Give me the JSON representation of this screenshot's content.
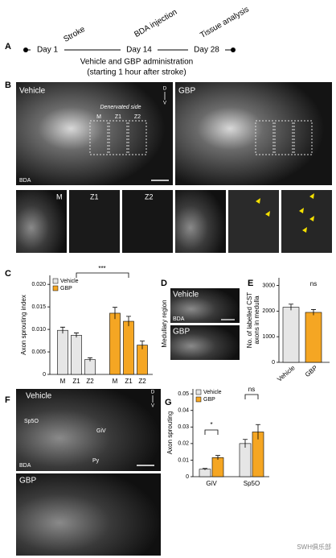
{
  "figure": {
    "panel_a": {
      "label": "A",
      "events": [
        "Stroke",
        "BDA injection",
        "Tissue analysis"
      ],
      "days": [
        "Day 1",
        "Day 14",
        "Day 28"
      ],
      "treatment": "Vehicle and GBP administration",
      "treatment_note": "(starting 1 hour after stroke)"
    },
    "panel_b": {
      "label": "B",
      "vehicle": "Vehicle",
      "gbp": "GBP",
      "dorsal": "D",
      "ventral": "V",
      "side_note": "Denervated side",
      "zones": [
        "M",
        "Z1",
        "Z2"
      ],
      "stain": "BDA",
      "inset_zones": [
        "M",
        "Z1",
        "Z2"
      ]
    },
    "panel_d": {
      "label": "D",
      "vehicle": "Vehicle",
      "gbp": "GBP",
      "stain": "BDA",
      "region": "Medullary region"
    },
    "panel_f": {
      "label": "F",
      "vehicle": "Vehicle",
      "gbp": "GBP",
      "stain": "BDA",
      "dorsal": "D",
      "ventral": "V",
      "regions": [
        "Sp5O",
        "GiV",
        "Py"
      ]
    },
    "watermark": "SWH俱乐部"
  },
  "chart_data": [
    {
      "panel": "C",
      "type": "bar",
      "y_label": "Axon sprouting index",
      "categories": [
        "M",
        "Z1",
        "Z2"
      ],
      "series": [
        {
          "name": "Vehicle",
          "color": "#e6e6e6",
          "values": [
            0.0098,
            0.0087,
            0.0033
          ],
          "errors": [
            0.0007,
            0.0005,
            0.0004
          ]
        },
        {
          "name": "GBP",
          "color": "#f5a623",
          "values": [
            0.0136,
            0.0118,
            0.0065
          ],
          "errors": [
            0.0013,
            0.0011,
            0.0009
          ]
        }
      ],
      "ylim": [
        0,
        0.022
      ],
      "yticks": [
        0,
        0.005,
        {
          "value": 0.01,
          "label": "0.010"
        },
        0.015,
        {
          "value": 0.02,
          "label": "0.020"
        }
      ],
      "annotations": [
        "***"
      ]
    },
    {
      "panel": "E",
      "type": "bar",
      "y_label": [
        "No. of labelled CST",
        "axons in medulla"
      ],
      "categories": [
        "Vehicle",
        "GBP"
      ],
      "values": [
        2150,
        1950
      ],
      "errors": [
        120,
        110
      ],
      "colors": [
        "#e6e6e6",
        "#f5a623"
      ],
      "ylim": [
        0,
        3300
      ],
      "yticks": [
        0,
        1000,
        2000,
        3000
      ],
      "annotations": [
        "ns"
      ]
    },
    {
      "panel": "G",
      "type": "bar",
      "y_label": "Axon sprouting",
      "categories": [
        "GiV",
        "Sp5O"
      ],
      "series": [
        {
          "name": "Vehicle",
          "color": "#e6e6e6",
          "values": [
            0.0045,
            0.02
          ],
          "errors": [
            0.0005,
            0.0025
          ]
        },
        {
          "name": "GBP",
          "color": "#f5a623",
          "values": [
            0.0115,
            0.027
          ],
          "errors": [
            0.0013,
            0.0045
          ]
        }
      ],
      "ylim": [
        0,
        0.053
      ],
      "yticks": [
        0,
        0.01,
        0.02,
        0.03,
        0.04,
        0.05
      ],
      "annotations": [
        "*",
        "ns"
      ]
    }
  ]
}
